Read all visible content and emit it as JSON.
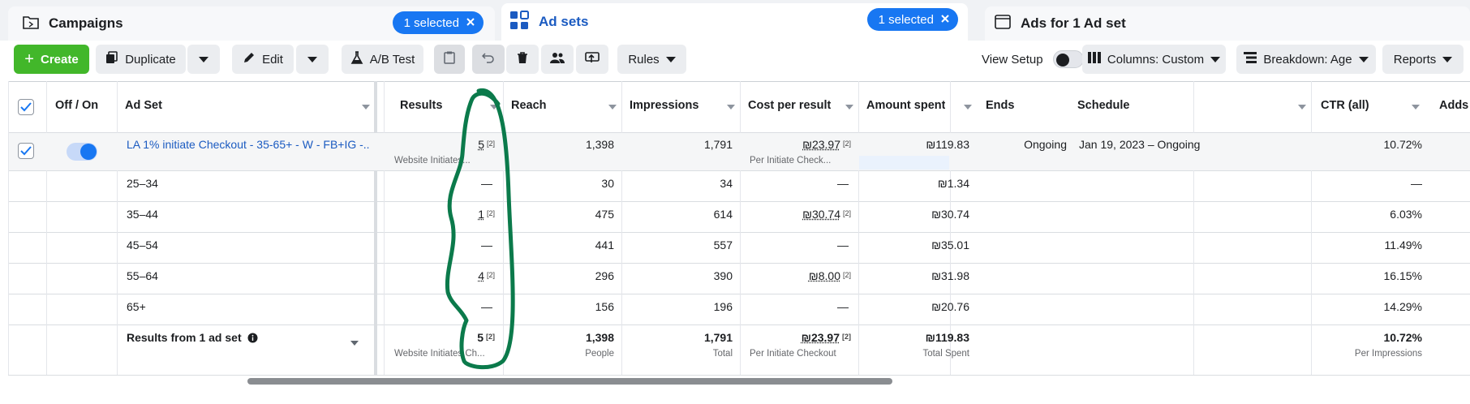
{
  "tabs": {
    "campaigns": {
      "label": "Campaigns",
      "selected": "1 selected"
    },
    "adsets": {
      "label": "Ad sets",
      "selected": "1 selected"
    },
    "ads": {
      "label": "Ads for 1 Ad set"
    }
  },
  "toolbar": {
    "create": "Create",
    "duplicate": "Duplicate",
    "edit": "Edit",
    "ab_test": "A/B Test",
    "rules": "Rules",
    "view_setup": "View Setup",
    "columns": "Columns: Custom",
    "breakdown": "Breakdown: Age",
    "reports": "Reports"
  },
  "columns": {
    "off_on": "Off / On",
    "ad_set": "Ad Set",
    "results": "Results",
    "reach": "Reach",
    "impressions": "Impressions",
    "cost_per_result": "Cost per result",
    "amount_spent": "Amount spent",
    "ends": "Ends",
    "schedule": "Schedule",
    "ctr": "CTR (all)",
    "adds": "Adds t"
  },
  "main_row": {
    "name": "LA 1% initiate Checkout - 35-65+ - W - FB+IG -...",
    "results": "5",
    "results_sup": "[2]",
    "results_sub": "Website Initiates...",
    "reach": "1,398",
    "impressions": "1,791",
    "cost": "₪23.97",
    "cost_sup": "[2]",
    "cost_sub": "Per Initiate Check...",
    "amount": "₪119.83",
    "ends": "Ongoing",
    "schedule": "Jan 19, 2023 – Ongoing",
    "ctr": "10.72%"
  },
  "breakdown_rows": [
    {
      "age": "25–34",
      "results": "—",
      "results_sup": "",
      "reach": "30",
      "impressions": "34",
      "cost": "—",
      "cost_sup": "",
      "amount": "₪1.34",
      "ctr": "—"
    },
    {
      "age": "35–44",
      "results": "1",
      "results_sup": "[2]",
      "reach": "475",
      "impressions": "614",
      "cost": "₪30.74",
      "cost_sup": "[2]",
      "amount": "₪30.74",
      "ctr": "6.03%"
    },
    {
      "age": "45–54",
      "results": "—",
      "results_sup": "",
      "reach": "441",
      "impressions": "557",
      "cost": "—",
      "cost_sup": "",
      "amount": "₪35.01",
      "ctr": "11.49%"
    },
    {
      "age": "55–64",
      "results": "4",
      "results_sup": "[2]",
      "reach": "296",
      "impressions": "390",
      "cost": "₪8.00",
      "cost_sup": "[2]",
      "amount": "₪31.98",
      "ctr": "16.15%"
    },
    {
      "age": "65+",
      "results": "—",
      "results_sup": "",
      "reach": "156",
      "impressions": "196",
      "cost": "—",
      "cost_sup": "",
      "amount": "₪20.76",
      "ctr": "14.29%"
    }
  ],
  "totals": {
    "label": "Results from 1 ad set",
    "results": "5",
    "results_sup": "[2]",
    "results_sub": "Website Initiates Ch...",
    "reach": "1,398",
    "reach_sub": "People",
    "impressions": "1,791",
    "impressions_sub": "Total",
    "cost": "₪23.97",
    "cost_sup": "[2]",
    "cost_sub": "Per Initiate Checkout",
    "amount": "₪119.83",
    "amount_sub": "Total Spent",
    "ctr": "10.72%",
    "ctr_sub": "Per Impressions"
  },
  "colors": {
    "accent": "#1877f2",
    "create": "#42b72a",
    "annotation": "#0b7a4b"
  }
}
